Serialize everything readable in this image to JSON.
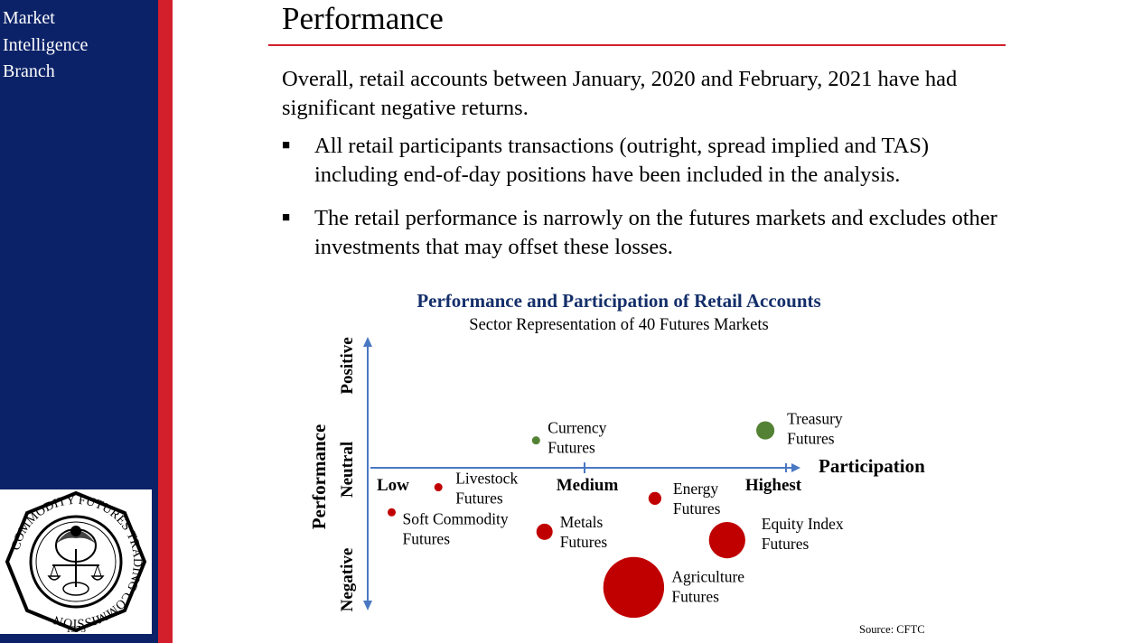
{
  "sidebar": {
    "branch_lines": [
      "Market",
      "Intelligence",
      "Branch"
    ],
    "seal": {
      "ring_text": "COMMODITY FUTURES TRADING COMMISSION",
      "year": "1975"
    }
  },
  "slide": {
    "title": "Performance",
    "intro": "Overall, retail accounts between January, 2020 and February, 2021 have had significant negative returns.",
    "bullets": [
      "All retail participants transactions (outright, spread implied and TAS) including end-of-day positions have been included in the analysis.",
      "The retail performance is narrowly on the futures markets and excludes other investments that may offset these losses."
    ],
    "source": "Source: CFTC"
  },
  "colors": {
    "navy": "#0c2268",
    "red": "#d21f2b",
    "axis_blue": "#4a78c2",
    "bubble_red": "#c00000",
    "bubble_green": "#548235"
  },
  "chart_data": {
    "type": "scatter",
    "title": "Performance and Participation of Retail Accounts",
    "subtitle": "Sector Representation of 40 Futures Markets",
    "xlabel": "Participation",
    "ylabel": "Performance",
    "x_ticks": [
      "Low",
      "Medium",
      "Highest"
    ],
    "y_ticks": [
      "Positive",
      "Neutral",
      "Negative"
    ],
    "xlim": [
      0,
      100
    ],
    "ylim": [
      -50,
      50
    ],
    "points": [
      {
        "name": "Currency Futures",
        "lines": [
          "Currency",
          "Futures"
        ],
        "x": 39,
        "y": 11,
        "size": 1,
        "color": "green"
      },
      {
        "name": "Treasury Futures",
        "lines": [
          "Treasury",
          "Futures"
        ],
        "x": 93,
        "y": 15,
        "size": 5,
        "color": "green"
      },
      {
        "name": "Livestock Futures",
        "lines": [
          "Livestock",
          "Futures"
        ],
        "x": 16,
        "y": -7,
        "size": 1,
        "color": "red"
      },
      {
        "name": "Soft Commodity Futures",
        "lines": [
          "Soft Commodity",
          "Futures"
        ],
        "x": 5,
        "y": -16,
        "size": 1,
        "color": "red"
      },
      {
        "name": "Metals Futures",
        "lines": [
          "Metals",
          "Futures"
        ],
        "x": 41,
        "y": -23,
        "size": 4,
        "color": "red"
      },
      {
        "name": "Energy Futures",
        "lines": [
          "Energy",
          "Futures"
        ],
        "x": 67,
        "y": -11,
        "size": 2.5,
        "color": "red"
      },
      {
        "name": "Equity Index Futures",
        "lines": [
          "Equity Index",
          "Futures"
        ],
        "x": 84,
        "y": -26,
        "size": 20,
        "color": "red"
      },
      {
        "name": "Agriculture Futures",
        "lines": [
          "Agriculture",
          "Futures"
        ],
        "x": 62,
        "y": -43,
        "size": 56,
        "color": "red"
      }
    ]
  }
}
